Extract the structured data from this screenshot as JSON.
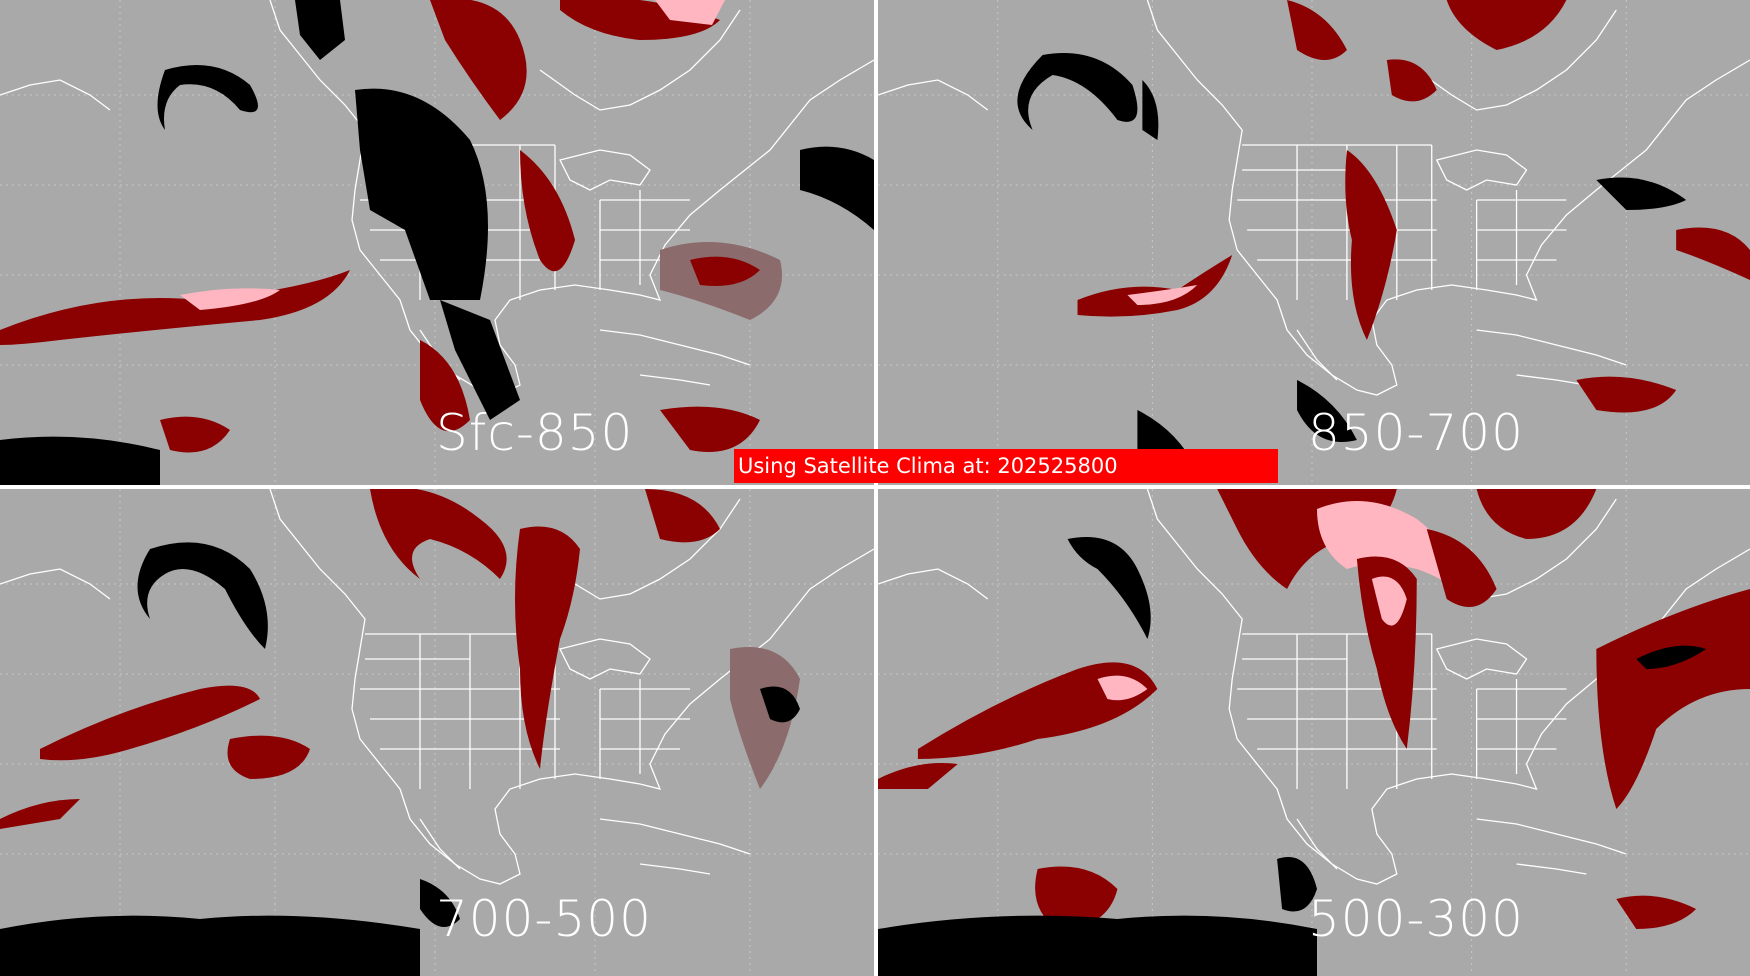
{
  "panels": [
    {
      "label": "Sfc-850"
    },
    {
      "label": "850-700"
    },
    {
      "label": "700-500"
    },
    {
      "label": "500-300"
    }
  ],
  "banner": {
    "text": "Using Satellite Clima at: 202525800"
  },
  "colors": {
    "background": "#a9a9a9",
    "coastline": "#ffffff",
    "dark_red": "#8b0000",
    "red": "#c00000",
    "pink": "#ffb6c1",
    "brownish": "#8a6b6b",
    "black": "#000000",
    "banner": "#ff0000"
  }
}
